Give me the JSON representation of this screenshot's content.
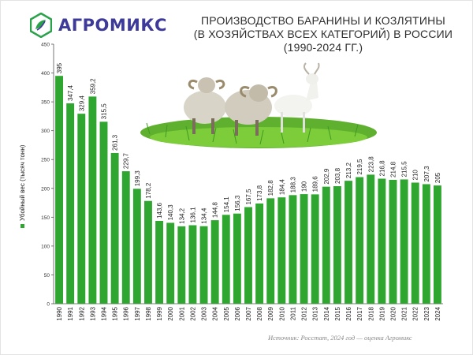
{
  "brand": {
    "name": "АГРОМИКС",
    "colors": {
      "brand_text": "#3d3a9a",
      "mark_green": "#2aa24a",
      "mark_dark": "#3d3a9a"
    }
  },
  "title": {
    "line1": "ПРОИЗВОДСТВО БАРАНИНЫ И КОЗЛЯТИНЫ",
    "line2": "(В ХОЗЯЙСТВАХ ВСЕХ КАТЕГОРИЙ) В РОССИИ",
    "line3": "(1990-2024 ГГ.)"
  },
  "source": "Источник: Росстат, 2024 год — оценка Агромикс",
  "illustration": {
    "description_icon": "sheep-and-goat-on-grass-illustration"
  },
  "chart_data": {
    "type": "bar",
    "categories": [
      "1990",
      "1991",
      "1992",
      "1993",
      "1994",
      "1995",
      "1996",
      "1997",
      "1998",
      "1999",
      "2000",
      "2001",
      "2002",
      "2003",
      "2004",
      "2005",
      "2006",
      "2007",
      "2008",
      "2009",
      "2010",
      "2011",
      "2012",
      "2013",
      "2014",
      "2015",
      "2016",
      "2017",
      "2018",
      "2019",
      "2020",
      "2021",
      "2022",
      "2023",
      "2024"
    ],
    "series": [
      {
        "name": "Убойный вес (тысяч тонн)",
        "color": "#2fa62f",
        "values": [
          395,
          347.4,
          329.4,
          359.2,
          315.5,
          261.3,
          229.7,
          199.3,
          178.2,
          143.6,
          140.3,
          134.2,
          136.1,
          134.4,
          144.8,
          154.1,
          156.3,
          167.5,
          173.8,
          182.8,
          184.4,
          188.3,
          190,
          189.6,
          202.9,
          203.8,
          213.2,
          219.5,
          223.8,
          216.8,
          214.8,
          215.5,
          210,
          207.3,
          205
        ],
        "labels": [
          "395",
          "347,4",
          "329,4",
          "359,2",
          "315,5",
          "261,3",
          "229,7",
          "199,3",
          "178,2",
          "143,6",
          "140,3",
          "134,2",
          "136,1",
          "134,4",
          "144,8",
          "154,1",
          "156,3",
          "167,5",
          "173,8",
          "182,8",
          "184,4",
          "188,3",
          "190",
          "189,6",
          "202,9",
          "203,8",
          "213,2",
          "219,5",
          "223,8",
          "216,8",
          "214,8",
          "215,5",
          "210",
          "207,3",
          "205"
        ]
      }
    ],
    "y_ticks": [
      "0",
      "50",
      "100",
      "150",
      "200",
      "250",
      "300",
      "350",
      "400",
      "450"
    ],
    "ylim": [
      0,
      450
    ],
    "grid": false,
    "legend": "left-vertical",
    "legend_label": "Убойный вес (тысяч тонн)",
    "title": "ПРОИЗВОДСТВО БАРАНИНЫ И КОЗЛЯТИНЫ (В ХОЗЯЙСТВАХ ВСЕХ КАТЕГОРИЙ) В РОССИИ (1990-2024 ГГ.)"
  }
}
